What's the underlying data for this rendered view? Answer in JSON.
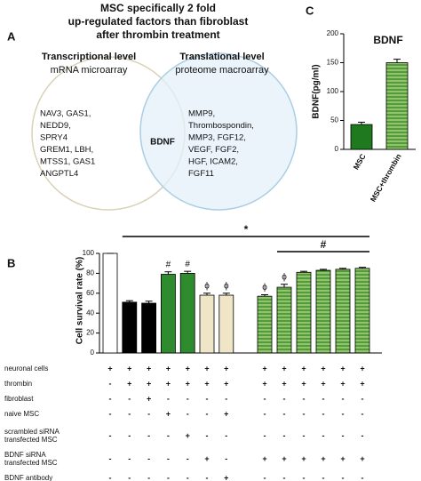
{
  "labels": [
    "A",
    "B",
    "C"
  ],
  "venn": {
    "title": [
      "MSC specifically 2 fold",
      "up-regulated factors than fibroblast",
      "after thrombin treatment"
    ],
    "left": {
      "heading": "Transcriptional level",
      "subheading": "mRNA microarray",
      "items": [
        "NAV3, GAS1,",
        "NEDD9,",
        "SPRY4",
        "GREM1, LBH,",
        "MTSS1, GAS1",
        "ANGPTL4"
      ]
    },
    "right": {
      "heading": "Translational level",
      "subheading": "proteome macroarray",
      "items": [
        "MMP9,",
        "Thrombospondin,",
        "MMP3, FGF12,",
        "VEGF, FGF2,",
        "HGF, ICAM2,",
        "FGF11"
      ]
    },
    "center": "BDNF"
  },
  "chart_data": [
    {
      "type": "bar",
      "title": "BDNF",
      "y_label": "BDNF(pg/ml)",
      "categories": [
        "MSC",
        "MSC+thrombin"
      ],
      "values": [
        43,
        150
      ],
      "errors": [
        4,
        6
      ],
      "colors": [
        "#1f7a1f",
        "#3d9a2e"
      ],
      "hatch": [
        false,
        true
      ],
      "ylim": [
        0,
        200
      ],
      "yticks": [
        0,
        50,
        100,
        150,
        200
      ]
    },
    {
      "type": "bar",
      "y_label": "Cell survival rate (%)",
      "categories": [
        null,
        null,
        null,
        null,
        null,
        null,
        null,
        null,
        null,
        null,
        null,
        null,
        null
      ],
      "values": [
        100,
        51,
        50,
        79,
        80,
        58,
        58,
        57,
        66,
        81,
        83,
        84,
        85
      ],
      "errors": [
        0,
        1.5,
        2,
        2.5,
        2,
        2,
        2,
        1.5,
        3,
        1,
        1,
        1,
        1
      ],
      "colors": [
        "#ffffff",
        "#000000",
        "#000000",
        "#2e8b2e",
        "#2e8b2e",
        "#efe6c8",
        "#efe6c8",
        "#8fc46a",
        "#8fc46a",
        "#8fc46a",
        "#8fc46a",
        "#8fc46a",
        "#8fc46a"
      ],
      "hatch": [
        false,
        false,
        false,
        false,
        false,
        false,
        false,
        true,
        true,
        true,
        true,
        true,
        true
      ],
      "ylim": [
        0,
        100
      ],
      "yticks": [
        0,
        20,
        40,
        60,
        80,
        100
      ],
      "markers": [
        {
          "bar": 3,
          "label": "#"
        },
        {
          "bar": 4,
          "label": "#"
        },
        {
          "bar": 5,
          "label": "ϕ"
        },
        {
          "bar": 6,
          "label": "ϕ"
        },
        {
          "bar": 7,
          "label": "ϕ"
        },
        {
          "bar": 8,
          "label": "ϕ"
        }
      ],
      "brackets": [
        {
          "from": 1,
          "to": 12,
          "label": "*"
        },
        {
          "from": 8,
          "to": 12,
          "label": "#"
        }
      ]
    }
  ],
  "table": {
    "rows": [
      {
        "label": [
          "neuronal cells"
        ],
        "cells": [
          "+",
          "+",
          "+",
          "+",
          "+",
          "+",
          "+",
          "+",
          "+",
          "+",
          "+",
          "+",
          "+"
        ]
      },
      {
        "label": [
          "thrombin"
        ],
        "cells": [
          "-",
          "+",
          "+",
          "+",
          "+",
          "+",
          "+",
          "+",
          "+",
          "+",
          "+",
          "+",
          "+"
        ]
      },
      {
        "label": [
          "fibroblast"
        ],
        "cells": [
          "-",
          "-",
          "+",
          "-",
          "-",
          "-",
          "-",
          "-",
          "-",
          "-",
          "-",
          "-",
          "-"
        ]
      },
      {
        "label": [
          "naive MSC"
        ],
        "cells": [
          "-",
          "-",
          "-",
          "+",
          "-",
          "-",
          "+",
          "-",
          "-",
          "-",
          "-",
          "-",
          "-"
        ]
      },
      {
        "label": [
          "scrambled siRNA",
          "transfected MSC"
        ],
        "cells": [
          "-",
          "-",
          "-",
          "-",
          "+",
          "-",
          "-",
          "-",
          "-",
          "-",
          "-",
          "-",
          "-"
        ]
      },
      {
        "label": [
          "BDNF siRNA",
          "transfected MSC"
        ],
        "cells": [
          "-",
          "-",
          "-",
          "-",
          "-",
          "+",
          "-",
          "+",
          "+",
          "+",
          "+",
          "+",
          "+"
        ]
      },
      {
        "label": [
          "BDNF antibody"
        ],
        "cells": [
          "-",
          "-",
          "-",
          "-",
          "-",
          "-",
          "+",
          "-",
          "-",
          "-",
          "-",
          "-",
          "-"
        ]
      }
    ]
  }
}
